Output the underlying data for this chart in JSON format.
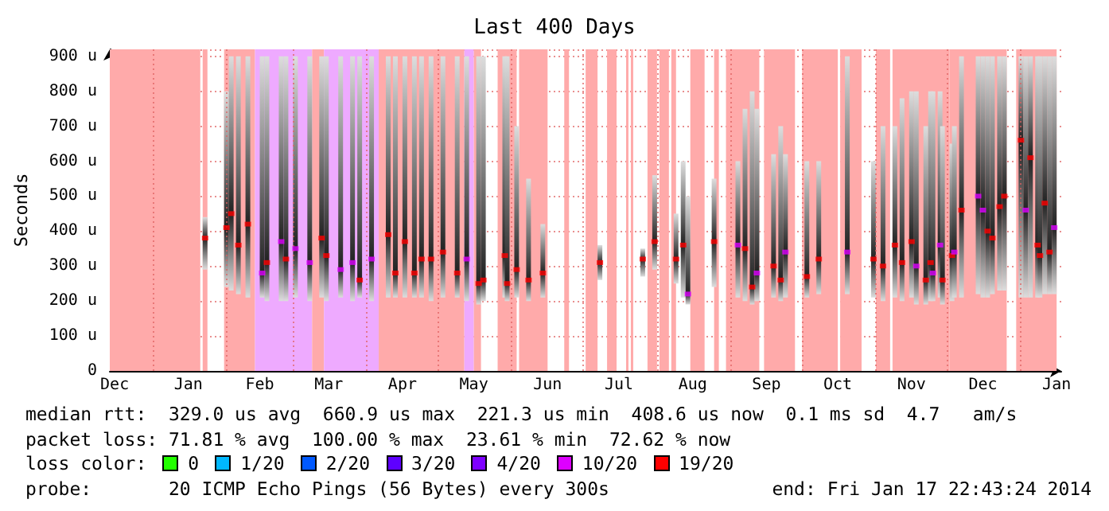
{
  "chart_data": {
    "type": "scatter",
    "title": "Last 400 Days",
    "ylabel": "Seconds",
    "xlim": [
      "2012-12-13T22:43",
      "2014-01-17T22:43"
    ],
    "xticks": [
      {
        "value": "2012-12-16",
        "label": "Dec"
      },
      {
        "value": "2013-01-01",
        "label": null
      },
      {
        "value": "2013-01-16",
        "label": "Jan"
      },
      {
        "value": "2013-02-01",
        "label": null
      },
      {
        "value": "2013-02-15",
        "label": "Feb"
      },
      {
        "value": "2013-03-01",
        "label": null
      },
      {
        "value": "2013-03-16",
        "label": "Mar"
      },
      {
        "value": "2013-04-01",
        "label": null
      },
      {
        "value": "2013-04-16",
        "label": "Apr"
      },
      {
        "value": "2013-05-01",
        "label": null
      },
      {
        "value": "2013-05-16",
        "label": "May"
      },
      {
        "value": "2013-06-01",
        "label": null
      },
      {
        "value": "2013-06-16",
        "label": "Jun"
      },
      {
        "value": "2013-07-01",
        "label": null
      },
      {
        "value": "2013-07-16",
        "label": "Jul"
      },
      {
        "value": "2013-08-01",
        "label": null
      },
      {
        "value": "2013-08-16",
        "label": "Aug"
      },
      {
        "value": "2013-09-01",
        "label": null
      },
      {
        "value": "2013-09-16",
        "label": "Sep"
      },
      {
        "value": "2013-10-01",
        "label": null
      },
      {
        "value": "2013-10-16",
        "label": "Oct"
      },
      {
        "value": "2013-11-01",
        "label": null
      },
      {
        "value": "2013-11-16",
        "label": "Nov"
      },
      {
        "value": "2013-12-01",
        "label": null
      },
      {
        "value": "2013-12-16",
        "label": "Dec"
      },
      {
        "value": "2014-01-01",
        "label": null
      },
      {
        "value": "2014-01-16",
        "label": "Jan"
      }
    ],
    "ylim": [
      0,
      920
    ],
    "yticks": [
      0,
      {
        "value": 100,
        "label": "100 u"
      },
      {
        "value": 200,
        "label": "200 u"
      },
      {
        "value": 300,
        "label": "300 u"
      },
      {
        "value": 400,
        "label": "400 u"
      },
      {
        "value": 500,
        "label": "500 u"
      },
      {
        "value": 600,
        "label": "600 u"
      },
      {
        "value": 700,
        "label": "700 u"
      },
      {
        "value": 800,
        "label": "800 u"
      },
      {
        "value": 900,
        "label": "900 u"
      }
    ],
    "grid": true,
    "marker": "square",
    "legend": "bottom",
    "legend_title": "loss color:",
    "series": [
      {
        "x": [
          "2013-01-23",
          "2013-02-01",
          "2013-02-03",
          "2013-02-06",
          "2013-02-10",
          "2013-02-16",
          "2013-02-18",
          "2013-02-24",
          "2013-02-26",
          "2013-03-02",
          "2013-03-08",
          "2013-03-13",
          "2013-03-15",
          "2013-03-21",
          "2013-03-26",
          "2013-03-29",
          "2013-04-03",
          "2013-04-10",
          "2013-04-13",
          "2013-04-17",
          "2013-04-21",
          "2013-04-24",
          "2013-04-28",
          "2013-05-03",
          "2013-05-09",
          "2013-05-13",
          "2013-05-18",
          "2013-05-20",
          "2013-05-29",
          "2013-05-30",
          "2013-06-03",
          "2013-06-08",
          "2013-06-14",
          "2013-07-08",
          "2013-07-26",
          "2013-07-31",
          "2013-08-09",
          "2013-08-12",
          "2013-08-14",
          "2013-08-25",
          "2013-09-04",
          "2013-09-07",
          "2013-09-10",
          "2013-09-12",
          "2013-09-19",
          "2013-09-22",
          "2013-09-24",
          "2013-10-03",
          "2013-10-08",
          "2013-10-20",
          "2013-10-31",
          "2013-11-04",
          "2013-11-09",
          "2013-11-12",
          "2013-11-16",
          "2013-11-18",
          "2013-11-22",
          "2013-11-24",
          "2013-11-25",
          "2013-11-28",
          "2013-11-29",
          "2013-12-03",
          "2013-12-04",
          "2013-12-07",
          "2013-12-14",
          "2013-12-16",
          "2013-12-18",
          "2013-12-20",
          "2013-12-23",
          "2013-12-25",
          "2014-01-01",
          "2014-01-03",
          "2014-01-05",
          "2014-01-08",
          "2014-01-09",
          "2014-01-11",
          "2014-01-13",
          "2014-01-15"
        ],
        "values": [
          380,
          410,
          450,
          360,
          420,
          280,
          310,
          370,
          320,
          350,
          310,
          380,
          330,
          290,
          310,
          260,
          320,
          390,
          280,
          370,
          280,
          320,
          320,
          340,
          280,
          320,
          250,
          260,
          330,
          250,
          290,
          260,
          280,
          310,
          320,
          370,
          320,
          360,
          220,
          370,
          360,
          350,
          240,
          280,
          300,
          260,
          340,
          270,
          320,
          340,
          320,
          300,
          360,
          310,
          370,
          300,
          260,
          310,
          280,
          360,
          260,
          330,
          340,
          460,
          500,
          460,
          400,
          380,
          470,
          500,
          660,
          460,
          610,
          360,
          330,
          480,
          340,
          410
        ],
        "lower": [
          290,
          240,
          230,
          220,
          210,
          210,
          200,
          200,
          200,
          210,
          200,
          210,
          200,
          210,
          200,
          210,
          200,
          210,
          210,
          210,
          210,
          210,
          200,
          210,
          210,
          200,
          190,
          200,
          210,
          200,
          210,
          200,
          210,
          260,
          270,
          290,
          250,
          210,
          190,
          240,
          210,
          200,
          190,
          200,
          210,
          200,
          210,
          210,
          220,
          220,
          210,
          200,
          210,
          200,
          210,
          190,
          190,
          200,
          200,
          210,
          190,
          200,
          210,
          210,
          220,
          210,
          210,
          220,
          230,
          230,
          210,
          210,
          210,
          210,
          210,
          220,
          220,
          220
        ],
        "upper": [
          440,
          800,
          900,
          900,
          900,
          900,
          900,
          900,
          900,
          900,
          900,
          900,
          900,
          900,
          900,
          900,
          900,
          900,
          900,
          900,
          900,
          900,
          900,
          900,
          900,
          900,
          900,
          900,
          900,
          900,
          700,
          550,
          420,
          360,
          350,
          560,
          450,
          600,
          500,
          550,
          600,
          750,
          800,
          750,
          620,
          700,
          620,
          600,
          600,
          900,
          600,
          700,
          700,
          780,
          800,
          800,
          700,
          800,
          800,
          800,
          700,
          650,
          700,
          900,
          900,
          900,
          900,
          900,
          900,
          900,
          900,
          900,
          900,
          900,
          900,
          900,
          900,
          900
        ],
        "colors": [
          "#ff0000",
          "#ff0000",
          "#ff0000",
          "#ff0000",
          "#ff0000",
          "#dd00ff",
          "#ff0000",
          "#dd00ff",
          "#ff0000",
          "#dd00ff",
          "#dd00ff",
          "#ff0000",
          "#ff0000",
          "#dd00ff",
          "#dd00ff",
          "#ff0000",
          "#dd00ff",
          "#ff0000",
          "#ff0000",
          "#ff0000",
          "#ff0000",
          "#ff0000",
          "#ff0000",
          "#ff0000",
          "#ff0000",
          "#dd00ff",
          "#ff0000",
          "#ff0000",
          "#ff0000",
          "#ff0000",
          "#ff0000",
          "#ff0000",
          "#ff0000",
          "#ff0000",
          "#ff0000",
          "#ff0000",
          "#ff0000",
          "#ff0000",
          "#dd00ff",
          "#ff0000",
          "#dd00ff",
          "#ff0000",
          "#ff0000",
          "#dd00ff",
          "#ff0000",
          "#ff0000",
          "#dd00ff",
          "#ff0000",
          "#ff0000",
          "#dd00ff",
          "#ff0000",
          "#ff0000",
          "#ff0000",
          "#ff0000",
          "#ff0000",
          "#dd00ff",
          "#ff0000",
          "#ff0000",
          "#dd00ff",
          "#dd00ff",
          "#ff0000",
          "#ff0000",
          "#dd00ff",
          "#ff0000",
          "#dd00ff",
          "#dd00ff",
          "#ff0000",
          "#ff0000",
          "#ff0000",
          "#ff0000",
          "#ff0000",
          "#dd00ff",
          "#ff0000",
          "#ff0000",
          "#ff0000",
          "#ff0000",
          "#ff0000",
          "#dd00ff"
        ]
      },
      {
        "name": "0",
        "color": "#22ff00"
      },
      {
        "name": "1/20",
        "color": "#00b8ff"
      },
      {
        "name": "2/20",
        "color": "#0059ff"
      },
      {
        "name": "3/20",
        "color": "#5e00ff"
      },
      {
        "name": "4/20",
        "color": "#7e00ff"
      },
      {
        "name": "10/20",
        "color": "#dd00ff"
      },
      {
        "name": "19/20",
        "color": "#ff0000"
      }
    ],
    "bands": [
      {
        "axis": "x",
        "from": "2012-12-13T22:43",
        "to": "2013-01-21",
        "color": "#ffaaaa"
      },
      {
        "axis": "x",
        "from": "2013-01-22",
        "to": "2013-01-24",
        "color": "#ffaaaa"
      },
      {
        "axis": "x",
        "from": "2013-01-31",
        "to": "2013-02-13",
        "color": "#ffaaaa"
      },
      {
        "axis": "x",
        "from": "2013-02-13",
        "to": "2013-03-09",
        "color": "#eeaaff"
      },
      {
        "axis": "x",
        "from": "2013-03-09",
        "to": "2013-03-14",
        "color": "#ffaaaa"
      },
      {
        "axis": "x",
        "from": "2013-03-14",
        "to": "2013-04-06",
        "color": "#eeaaff"
      },
      {
        "axis": "x",
        "from": "2013-04-06",
        "to": "2013-05-12",
        "color": "#ffaaaa"
      },
      {
        "axis": "x",
        "from": "2013-05-12",
        "to": "2013-05-16",
        "color": "#eeaaff"
      },
      {
        "axis": "x",
        "from": "2013-05-16",
        "to": "2013-05-19",
        "color": "#ffaaaa"
      },
      {
        "axis": "x",
        "from": "2013-05-26",
        "to": "2013-06-03",
        "color": "#ffaaaa"
      },
      {
        "axis": "x",
        "from": "2013-06-04",
        "to": "2013-06-16",
        "color": "#ffaaaa"
      },
      {
        "axis": "x",
        "from": "2013-06-23",
        "to": "2013-06-25",
        "color": "#ffaaaa"
      },
      {
        "axis": "x",
        "from": "2013-07-02",
        "to": "2013-07-07",
        "color": "#ffaaaa"
      },
      {
        "axis": "x",
        "from": "2013-07-11",
        "to": "2013-07-15",
        "color": "#ffaaaa"
      },
      {
        "axis": "x",
        "from": "2013-07-19",
        "to": "2013-07-20",
        "color": "#ffaaaa"
      },
      {
        "axis": "x",
        "from": "2013-07-21",
        "to": "2013-07-22",
        "color": "#ffaaaa"
      },
      {
        "axis": "x",
        "from": "2013-07-28",
        "to": "2013-08-01",
        "color": "#ffaaaa"
      },
      {
        "axis": "x",
        "from": "2013-08-02",
        "to": "2013-08-06",
        "color": "#ffaaaa"
      },
      {
        "axis": "x",
        "from": "2013-08-07",
        "to": "2013-08-09",
        "color": "#ffaaaa"
      },
      {
        "axis": "x",
        "from": "2013-08-15",
        "to": "2013-08-21",
        "color": "#ffaaaa"
      },
      {
        "axis": "x",
        "from": "2013-08-25",
        "to": "2013-08-27",
        "color": "#ffaaaa"
      },
      {
        "axis": "x",
        "from": "2013-08-30",
        "to": "2013-09-13",
        "color": "#ffaaaa"
      },
      {
        "axis": "x",
        "from": "2013-09-15",
        "to": "2013-09-28",
        "color": "#ffaaaa"
      },
      {
        "axis": "x",
        "from": "2013-10-01",
        "to": "2013-10-16",
        "color": "#ffaaaa"
      },
      {
        "axis": "x",
        "from": "2013-10-17",
        "to": "2013-10-26",
        "color": "#ffaaaa"
      },
      {
        "axis": "x",
        "from": "2013-11-01",
        "to": "2013-11-07",
        "color": "#ffaaaa"
      },
      {
        "axis": "x",
        "from": "2013-11-08",
        "to": "2013-12-02",
        "color": "#ffaaaa"
      },
      {
        "axis": "x",
        "from": "2013-12-02",
        "to": "2013-12-26",
        "color": "#ffaaaa"
      },
      {
        "axis": "x",
        "from": "2013-12-30",
        "to": "2014-01-16",
        "color": "#ffaaaa"
      }
    ],
    "annotations": [
      "median rtt:  329.0 us avg  660.9 us max  221.3 us min  408.6 us now  0.1 ms sd  4.7   am/s",
      "packet loss: 71.81 % avg  100.00 % max  23.61 % min  72.62 % now",
      "probe:       20 ICMP Echo Pings (56 Bytes) every 300s",
      "end: Fri Jan 17 22:43:24 2014"
    ]
  }
}
